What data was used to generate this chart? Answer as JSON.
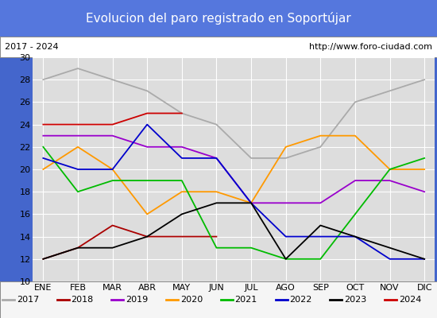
{
  "title": "Evolucion del paro registrado en Soportújar",
  "subtitle_left": "2017 - 2024",
  "subtitle_right": "http://www.foro-ciudad.com",
  "months": [
    "ENE",
    "FEB",
    "MAR",
    "ABR",
    "MAY",
    "JUN",
    "JUL",
    "AGO",
    "SEP",
    "OCT",
    "NOV",
    "DIC"
  ],
  "ylim": [
    10,
    30
  ],
  "yticks": [
    10,
    12,
    14,
    16,
    18,
    20,
    22,
    24,
    26,
    28,
    30
  ],
  "series": {
    "2017": {
      "color": "#aaaaaa",
      "values": [
        28,
        29,
        28,
        27,
        25,
        24,
        21,
        21,
        22,
        26,
        27,
        28
      ]
    },
    "2018": {
      "color": "#aa0000",
      "values": [
        12,
        13,
        15,
        14,
        14,
        14,
        null,
        null,
        null,
        null,
        null,
        null
      ]
    },
    "2019": {
      "color": "#9900cc",
      "values": [
        23,
        23,
        23,
        22,
        22,
        21,
        17,
        17,
        17,
        19,
        19,
        18
      ]
    },
    "2020": {
      "color": "#ff9900",
      "values": [
        20,
        22,
        20,
        16,
        18,
        18,
        17,
        22,
        23,
        23,
        20,
        20
      ]
    },
    "2021": {
      "color": "#00bb00",
      "values": [
        22,
        18,
        19,
        19,
        19,
        13,
        13,
        12,
        12,
        16,
        20,
        21
      ]
    },
    "2022": {
      "color": "#0000cc",
      "values": [
        21,
        20,
        20,
        24,
        21,
        21,
        17,
        14,
        14,
        14,
        12,
        12
      ]
    },
    "2023": {
      "color": "#000000",
      "values": [
        12,
        13,
        13,
        14,
        16,
        17,
        17,
        12,
        15,
        14,
        13,
        12
      ]
    },
    "2024": {
      "color": "#cc0000",
      "values": [
        24,
        24,
        24,
        25,
        25,
        null,
        null,
        null,
        null,
        null,
        null,
        null
      ]
    }
  },
  "title_bg_color": "#5577dd",
  "title_text_color": "#ffffff",
  "subtitle_bg_color": "#ffffff",
  "subtitle_text_color": "#000000",
  "plot_bg_color": "#dddddd",
  "grid_color": "#ffffff",
  "legend_bg_color": "#f5f5f5",
  "fig_bg_color": "#4466cc"
}
